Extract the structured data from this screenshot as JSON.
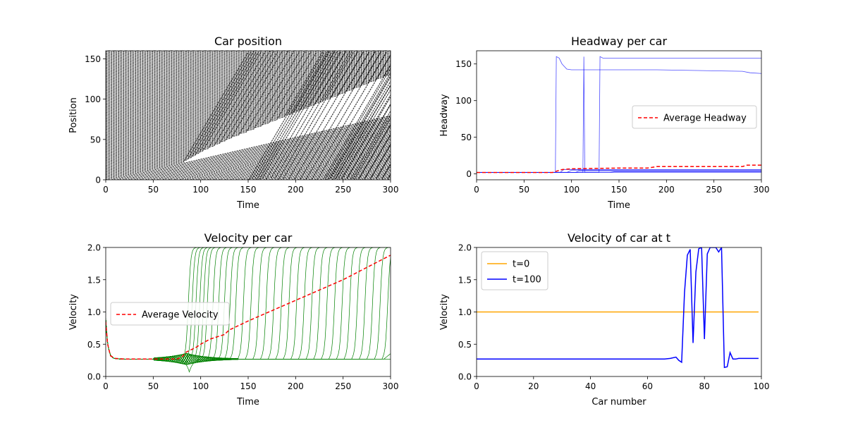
{
  "chart_data": [
    {
      "type": "line",
      "title": "Car position",
      "xlabel": "Time",
      "ylabel": "Position",
      "xlim": [
        0,
        300
      ],
      "ylim": [
        0,
        160
      ],
      "xticks": [
        "0",
        "50",
        "100",
        "150",
        "200",
        "250",
        "300"
      ],
      "yticks": [
        "0",
        "50",
        "100",
        "150"
      ],
      "legend": null,
      "colors": {
        "lines": "#000000"
      },
      "trajectories": {
        "count": 100,
        "road_length": 160,
        "slow_speed": 0.27,
        "fast_speed": 2.0,
        "release_times": [
          82,
          86,
          90,
          94,
          98,
          102,
          108,
          114,
          120,
          126,
          132,
          140,
          148,
          156,
          164,
          172,
          180,
          188,
          196,
          204,
          212,
          220,
          228,
          236,
          244,
          252,
          260,
          268,
          276,
          284,
          292
        ]
      }
    },
    {
      "type": "line",
      "title": "Headway per car",
      "xlabel": "Time",
      "ylabel": "Headway",
      "xlim": [
        0,
        300
      ],
      "ylim": [
        -8,
        168
      ],
      "xticks": [
        "0",
        "50",
        "100",
        "150",
        "200",
        "250",
        "300"
      ],
      "yticks": [
        "0",
        "50",
        "100",
        "150"
      ],
      "legend": {
        "position": "center-right",
        "entries": [
          "Average Headway"
        ]
      },
      "colors": {
        "series": "#0000ff",
        "average": "#ff0000"
      },
      "series": [
        {
          "x": [
            0,
            83,
            84,
            87,
            90,
            95,
            100,
            190,
            280,
            288,
            300
          ],
          "y": [
            2,
            2,
            160,
            158,
            150,
            143,
            142,
            142,
            140,
            138,
            137
          ]
        },
        {
          "x": [
            0,
            112,
            113,
            114,
            300
          ],
          "y": [
            2,
            2,
            160,
            2,
            2
          ]
        },
        {
          "x": [
            0,
            129,
            130,
            133,
            300
          ],
          "y": [
            2,
            2,
            160,
            158,
            158
          ]
        },
        {
          "x": [
            0,
            88,
            92,
            300
          ],
          "y": [
            2,
            2,
            6,
            6
          ]
        },
        {
          "x": [
            0,
            95,
            100,
            300
          ],
          "y": [
            2,
            2,
            5,
            5
          ]
        },
        {
          "x": [
            0,
            104,
            108,
            300
          ],
          "y": [
            2,
            2,
            4,
            4
          ]
        },
        {
          "x": [
            0,
            140,
            145,
            300
          ],
          "y": [
            2,
            2,
            3,
            3
          ]
        }
      ],
      "average": {
        "x": [
          0,
          80,
          90,
          100,
          150,
          180,
          190,
          280,
          285,
          300
        ],
        "y": [
          2,
          2,
          6,
          7,
          8,
          8,
          10,
          10,
          12,
          12
        ]
      }
    },
    {
      "type": "line",
      "title": "Velocity per car",
      "xlabel": "Time",
      "ylabel": "Velocity",
      "xlim": [
        0,
        300
      ],
      "ylim": [
        0,
        2.0
      ],
      "xticks": [
        "0",
        "50",
        "100",
        "150",
        "200",
        "250",
        "300"
      ],
      "yticks": [
        "0.0",
        "0.5",
        "1.0",
        "1.5",
        "2.0"
      ],
      "legend": {
        "position": "center-left",
        "entries": [
          "Average Velocity"
        ]
      },
      "colors": {
        "series": "#008000",
        "average": "#ff0000"
      },
      "slow_velocity": 0.27,
      "fast_velocity": 2.0,
      "release_times": [
        82,
        86,
        90,
        94,
        98,
        102,
        108,
        114,
        120,
        126,
        132,
        140,
        148,
        156,
        164,
        172,
        180,
        188,
        196,
        204,
        212,
        220,
        228,
        236,
        244,
        252,
        260,
        268,
        276,
        284,
        292
      ],
      "average": {
        "x": [
          0,
          2,
          5,
          10,
          20,
          40,
          60,
          75,
          80,
          85,
          95,
          100,
          110,
          125,
          130,
          150,
          200,
          250,
          300
        ],
        "y": [
          0.85,
          0.5,
          0.32,
          0.28,
          0.27,
          0.27,
          0.27,
          0.27,
          0.3,
          0.38,
          0.45,
          0.5,
          0.58,
          0.65,
          0.72,
          0.86,
          1.18,
          1.5,
          1.88
        ]
      }
    },
    {
      "type": "line",
      "title": "Velocity of car at t",
      "xlabel": "Car number",
      "ylabel": "Velocity",
      "xlim": [
        0,
        100
      ],
      "ylim": [
        0,
        2.0
      ],
      "xticks": [
        "0",
        "20",
        "40",
        "60",
        "80",
        "100"
      ],
      "yticks": [
        "0.0",
        "0.5",
        "1.0",
        "1.5",
        "2.0"
      ],
      "legend": {
        "position": "top-left",
        "entries": [
          "t=0",
          "t=100"
        ]
      },
      "colors": {
        "t0": "#ffa500",
        "t100": "#0000ff"
      },
      "series": [
        {
          "name": "t=0",
          "x": [
            0,
            99
          ],
          "y": [
            1.0,
            1.0
          ]
        },
        {
          "name": "t=100",
          "x": [
            0,
            66,
            68,
            70,
            71,
            72,
            73,
            74,
            75,
            76,
            77,
            78,
            79,
            80,
            81,
            82,
            83,
            84,
            85,
            86,
            87,
            88,
            89,
            90,
            91,
            92,
            99
          ],
          "y": [
            0.27,
            0.27,
            0.28,
            0.3,
            0.25,
            0.22,
            1.3,
            1.88,
            1.97,
            0.52,
            1.62,
            1.98,
            2.0,
            0.58,
            1.9,
            2.0,
            2.0,
            2.0,
            1.93,
            2.0,
            0.14,
            0.15,
            0.37,
            0.27,
            0.27,
            0.28,
            0.28
          ]
        }
      ]
    }
  ]
}
